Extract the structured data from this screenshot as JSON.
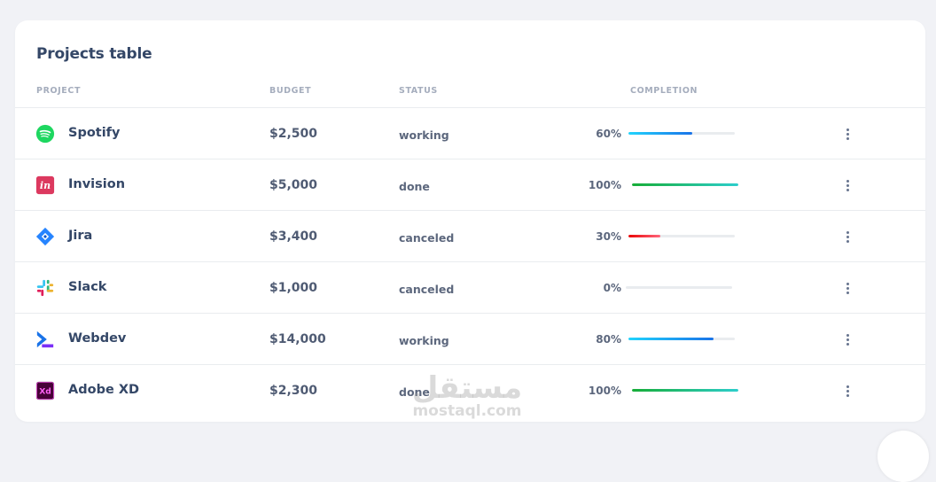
{
  "card": {
    "title": "Projects table"
  },
  "columns": {
    "project": "PROJECT",
    "budget": "BUDGET",
    "status": "STATUS",
    "completion": "COMPLETION"
  },
  "rows": [
    {
      "name": "Spotify",
      "budget": "$2,500",
      "status": "working",
      "completion_label": "60%",
      "completion": 60,
      "bar_color": "#1a73e8",
      "logo": "spotify-logo"
    },
    {
      "name": "Invision",
      "budget": "$5,000",
      "status": "done",
      "completion_label": "100%",
      "completion": 100,
      "bar_color": "#2dce89",
      "logo": "invision-logo"
    },
    {
      "name": "Jira",
      "budget": "$3,400",
      "status": "canceled",
      "completion_label": "30%",
      "completion": 30,
      "bar_color": "#ea0606",
      "logo": "jira-logo"
    },
    {
      "name": "Slack",
      "budget": "$1,000",
      "status": "canceled",
      "completion_label": "0%",
      "completion": 0,
      "bar_color": "#1a73e8",
      "logo": "slack-logo"
    },
    {
      "name": "Webdev",
      "budget": "$14,000",
      "status": "working",
      "completion_label": "80%",
      "completion": 80,
      "bar_color": "#1a73e8",
      "logo": "webdev-logo"
    },
    {
      "name": "Adobe XD",
      "budget": "$2,300",
      "status": "done",
      "completion_label": "100%",
      "completion": 100,
      "bar_color": "#2dce89",
      "logo": "adobe-xd-logo"
    }
  ],
  "watermark": {
    "arabic": "مستقل",
    "latin": "mostaql.com"
  },
  "colors": {
    "progress_blue_start": "#21d4fd",
    "progress_blue_end": "#1a73e8",
    "progress_green_start": "#17ad37",
    "progress_green_end": "#2dcecc",
    "progress_red_start": "#ea0606",
    "progress_red_end": "#ff667c"
  }
}
